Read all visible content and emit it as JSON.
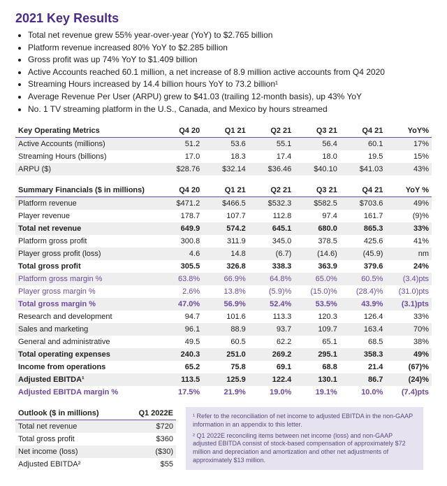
{
  "title": "2021 Key Results",
  "bullets": [
    "Total net revenue grew 55% year-over-year (YoY) to $2.765 billion",
    "Platform revenue increased 80% YoY to $2.285 billion",
    "Gross profit was up 74% YoY to $1.409 billion",
    "Active Accounts reached 60.1 million, a net increase of 8.9 million active accounts from Q4 2020",
    "Streaming Hours increased by 14.4 billion hours YoY to 73.2 billion¹",
    "Average Revenue Per User (ARPU) grew to $41.03 (trailing 12-month basis), up 43% YoY",
    "No. 1 TV streaming platform in the U.S., Canada, and Mexico by hours streamed"
  ],
  "table1": {
    "header": [
      "Key Operating Metrics",
      "Q4 20",
      "Q1 21",
      "Q2 21",
      "Q3 21",
      "Q4 21",
      "YoY%"
    ],
    "rows": [
      {
        "c": [
          "Active Accounts (millions)",
          "51.2",
          "53.6",
          "55.1",
          "56.4",
          "60.1",
          "17%"
        ],
        "stripe": true
      },
      {
        "c": [
          "Streaming Hours (billions)",
          "17.0",
          "18.3",
          "17.4",
          "18.0",
          "19.5",
          "15%"
        ]
      },
      {
        "c": [
          "ARPU ($)",
          "$28.76",
          "$32.14",
          "$36.46",
          "$40.10",
          "$41.03",
          "43%"
        ],
        "stripe": true
      }
    ]
  },
  "table2": {
    "header": [
      "Summary Financials ($ in millions)",
      "Q4 20",
      "Q1 21",
      "Q2 21",
      "Q3 21",
      "Q4 21",
      "YoY %"
    ],
    "rows": [
      {
        "c": [
          "Platform revenue",
          "$471.2",
          "$466.5",
          "$532.3",
          "$582.5",
          "$703.6",
          "49%"
        ],
        "stripe": true,
        "indent": true
      },
      {
        "c": [
          "Player revenue",
          "178.7",
          "107.7",
          "112.8",
          "97.4",
          "161.7",
          "(9)%"
        ],
        "indent": true
      },
      {
        "c": [
          "Total net revenue",
          "649.9",
          "574.2",
          "645.1",
          "680.0",
          "865.3",
          "33%"
        ],
        "stripe": true,
        "bold": true
      },
      {
        "c": [
          "Platform gross profit",
          "300.8",
          "311.9",
          "345.0",
          "378.5",
          "425.6",
          "41%"
        ],
        "indent": true
      },
      {
        "c": [
          "Player gross profit (loss)",
          "4.6",
          "14.8",
          "(6.7)",
          "(14.6)",
          "(45.9)",
          "nm"
        ],
        "stripe": true,
        "indent": true
      },
      {
        "c": [
          "Total gross profit",
          "305.5",
          "326.8",
          "338.3",
          "363.9",
          "379.6",
          "24%"
        ],
        "bold": true
      },
      {
        "c": [
          "Platform gross margin %",
          "63.8%",
          "66.9%",
          "64.8%",
          "65.0%",
          "60.5%",
          "(3.4)pts"
        ],
        "stripe": true,
        "purple": true,
        "indent": true
      },
      {
        "c": [
          "Player gross margin %",
          "2.6%",
          "13.8%",
          "(5.9)%",
          "(15.0)%",
          "(28.4)%",
          "(31.0)pts"
        ],
        "purple": true,
        "indent": true
      },
      {
        "c": [
          "Total gross margin %",
          "47.0%",
          "56.9%",
          "52.4%",
          "53.5%",
          "43.9%",
          "(3.1)pts"
        ],
        "stripe": true,
        "bold": true,
        "purple": true
      },
      {
        "c": [
          "Research and development",
          "94.7",
          "101.6",
          "113.3",
          "120.3",
          "126.4",
          "33%"
        ],
        "indent": true
      },
      {
        "c": [
          "Sales and marketing",
          "96.1",
          "88.9",
          "93.7",
          "109.7",
          "163.4",
          "70%"
        ],
        "stripe": true,
        "indent": true
      },
      {
        "c": [
          "General and administrative",
          "49.5",
          "60.5",
          "62.2",
          "65.1",
          "68.5",
          "38%"
        ],
        "indent": true
      },
      {
        "c": [
          "Total operating expenses",
          "240.3",
          "251.0",
          "269.2",
          "295.1",
          "358.3",
          "49%"
        ],
        "stripe": true,
        "bold": true
      },
      {
        "c": [
          "Income from operations",
          "65.2",
          "75.8",
          "69.1",
          "68.8",
          "21.4",
          "(67)%"
        ],
        "bold": true
      },
      {
        "c": [
          "Adjusted EBITDA¹",
          "113.5",
          "125.9",
          "122.4",
          "130.1",
          "86.7",
          "(24)%"
        ],
        "stripe": true,
        "bold": true
      },
      {
        "c": [
          "Adjusted EBITDA margin %",
          "17.5%",
          "21.9%",
          "19.0%",
          "19.1%",
          "10.0%",
          "(7.4)pts"
        ],
        "bold": true,
        "purple": true
      }
    ]
  },
  "outlook": {
    "header": [
      "Outlook ($ in millions)",
      "Q1 2022E"
    ],
    "rows": [
      {
        "c": [
          "Total net revenue",
          "$720"
        ],
        "stripe": true
      },
      {
        "c": [
          "Total gross profit",
          "$360"
        ]
      },
      {
        "c": [
          "Net income (loss)",
          "($30)"
        ],
        "stripe": true
      },
      {
        "c": [
          "Adjusted EBITDA²",
          "$55"
        ]
      }
    ]
  },
  "footnotes": {
    "f1": "¹ Refer to the reconciliation of net income to adjusted EBITDA in the non-GAAP information in an appendix to this letter.",
    "f2": "² Q1 2022E reconciling items between net income (loss) and non-GAAP adjusted EBITDA consist of stock-based compensation of approximately $72 million and depreciation and amortization and other net adjustments of approximately $13 million."
  },
  "colors": {
    "heading": "#4a2b8a",
    "purple": "#6b4aa0",
    "stripe": "#eeeeee",
    "footnote_bg": "#e7e2ef",
    "text": "#222222"
  }
}
